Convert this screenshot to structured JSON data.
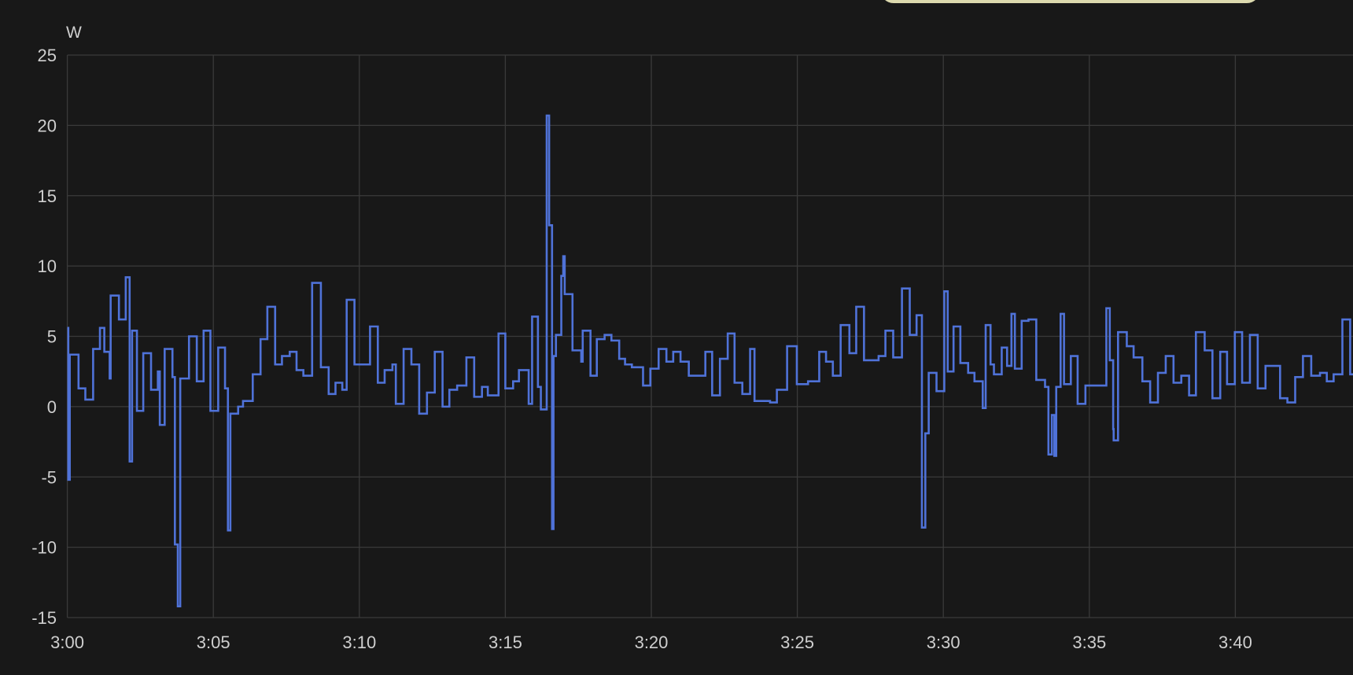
{
  "chart_data": {
    "type": "line",
    "step": true,
    "unit_label": "W",
    "xlabel": "",
    "ylabel": "",
    "ylim": [
      -15,
      25
    ],
    "yticks": [
      25,
      20,
      15,
      10,
      5,
      0,
      -5,
      -10,
      -15
    ],
    "xlim": [
      "3:00:00",
      "3:44:00"
    ],
    "xticks": [
      "3:00",
      "3:05",
      "3:10",
      "3:15",
      "3:20",
      "3:25",
      "3:30",
      "3:35",
      "3:40"
    ],
    "grid": true,
    "colors": {
      "line": "#4f72d8",
      "background": "#181818",
      "grid": "#3a3a3a",
      "text": "#cfcfcf"
    },
    "series": [
      {
        "points": [
          [
            "3:00:00",
            5.6
          ],
          [
            "3:00:02",
            -5.2
          ],
          [
            "3:00:05",
            3.7
          ],
          [
            "3:00:23",
            1.3
          ],
          [
            "3:00:37",
            0.5
          ],
          [
            "3:00:53",
            4.1
          ],
          [
            "3:01:07",
            5.6
          ],
          [
            "3:01:16",
            3.9
          ],
          [
            "3:01:27",
            2.0
          ],
          [
            "3:01:29",
            7.9
          ],
          [
            "3:01:46",
            6.2
          ],
          [
            "3:02:00",
            9.2
          ],
          [
            "3:02:08",
            -3.9
          ],
          [
            "3:02:13",
            5.4
          ],
          [
            "3:02:23",
            -0.3
          ],
          [
            "3:02:36",
            3.8
          ],
          [
            "3:02:52",
            1.2
          ],
          [
            "3:03:06",
            2.5
          ],
          [
            "3:03:10",
            -1.3
          ],
          [
            "3:03:20",
            4.1
          ],
          [
            "3:03:36",
            2.1
          ],
          [
            "3:03:41",
            -9.8
          ],
          [
            "3:03:47",
            -14.2
          ],
          [
            "3:03:52",
            2.0
          ],
          [
            "3:04:10",
            5.0
          ],
          [
            "3:04:26",
            1.8
          ],
          [
            "3:04:40",
            5.4
          ],
          [
            "3:04:54",
            -0.3
          ],
          [
            "3:05:10",
            4.2
          ],
          [
            "3:05:24",
            1.3
          ],
          [
            "3:05:30",
            -8.8
          ],
          [
            "3:05:35",
            -0.5
          ],
          [
            "3:05:51",
            0.0
          ],
          [
            "3:06:01",
            0.4
          ],
          [
            "3:06:21",
            2.3
          ],
          [
            "3:06:37",
            4.8
          ],
          [
            "3:06:51",
            7.1
          ],
          [
            "3:07:07",
            3.0
          ],
          [
            "3:07:21",
            3.6
          ],
          [
            "3:07:37",
            3.9
          ],
          [
            "3:07:51",
            2.6
          ],
          [
            "3:08:05",
            2.2
          ],
          [
            "3:08:23",
            8.8
          ],
          [
            "3:08:41",
            2.8
          ],
          [
            "3:08:57",
            0.9
          ],
          [
            "3:09:11",
            1.7
          ],
          [
            "3:09:25",
            1.2
          ],
          [
            "3:09:34",
            7.6
          ],
          [
            "3:09:50",
            3.0
          ],
          [
            "3:10:22",
            5.7
          ],
          [
            "3:10:38",
            1.7
          ],
          [
            "3:10:52",
            2.6
          ],
          [
            "3:11:08",
            3.0
          ],
          [
            "3:11:15",
            0.2
          ],
          [
            "3:11:31",
            4.1
          ],
          [
            "3:11:47",
            3.0
          ],
          [
            "3:12:03",
            -0.5
          ],
          [
            "3:12:19",
            1.0
          ],
          [
            "3:12:35",
            3.9
          ],
          [
            "3:12:51",
            0.0
          ],
          [
            "3:13:05",
            1.2
          ],
          [
            "3:13:21",
            1.5
          ],
          [
            "3:13:40",
            3.5
          ],
          [
            "3:13:56",
            0.7
          ],
          [
            "3:14:12",
            1.4
          ],
          [
            "3:14:24",
            0.8
          ],
          [
            "3:14:46",
            5.2
          ],
          [
            "3:15:00",
            1.3
          ],
          [
            "3:15:16",
            1.8
          ],
          [
            "3:15:28",
            2.6
          ],
          [
            "3:15:48",
            0.2
          ],
          [
            "3:15:55",
            6.4
          ],
          [
            "3:16:07",
            1.4
          ],
          [
            "3:16:13",
            -0.2
          ],
          [
            "3:16:25",
            20.7
          ],
          [
            "3:16:30",
            12.9
          ],
          [
            "3:16:36",
            -8.7
          ],
          [
            "3:16:39",
            3.6
          ],
          [
            "3:16:44",
            5.1
          ],
          [
            "3:16:55",
            9.3
          ],
          [
            "3:16:59",
            10.7
          ],
          [
            "3:17:02",
            8.0
          ],
          [
            "3:17:18",
            4.0
          ],
          [
            "3:17:36",
            3.2
          ],
          [
            "3:17:39",
            5.4
          ],
          [
            "3:17:55",
            2.2
          ],
          [
            "3:18:08",
            4.8
          ],
          [
            "3:18:24",
            5.1
          ],
          [
            "3:18:38",
            4.7
          ],
          [
            "3:18:54",
            3.4
          ],
          [
            "3:19:06",
            3.0
          ],
          [
            "3:19:20",
            2.8
          ],
          [
            "3:19:43",
            1.5
          ],
          [
            "3:19:58",
            2.7
          ],
          [
            "3:20:15",
            4.1
          ],
          [
            "3:20:31",
            3.2
          ],
          [
            "3:20:45",
            3.9
          ],
          [
            "3:21:00",
            3.2
          ],
          [
            "3:21:17",
            2.2
          ],
          [
            "3:21:51",
            3.9
          ],
          [
            "3:22:05",
            0.8
          ],
          [
            "3:22:21",
            3.4
          ],
          [
            "3:22:37",
            5.2
          ],
          [
            "3:22:51",
            1.7
          ],
          [
            "3:23:07",
            0.9
          ],
          [
            "3:23:23",
            4.1
          ],
          [
            "3:23:32",
            0.4
          ],
          [
            "3:24:04",
            0.3
          ],
          [
            "3:24:18",
            1.2
          ],
          [
            "3:24:39",
            4.3
          ],
          [
            "3:24:59",
            1.6
          ],
          [
            "3:25:22",
            1.8
          ],
          [
            "3:25:45",
            3.9
          ],
          [
            "3:25:59",
            3.2
          ],
          [
            "3:26:13",
            2.2
          ],
          [
            "3:26:29",
            5.8
          ],
          [
            "3:26:47",
            3.8
          ],
          [
            "3:27:01",
            7.1
          ],
          [
            "3:27:17",
            3.3
          ],
          [
            "3:27:47",
            3.6
          ],
          [
            "3:28:01",
            5.4
          ],
          [
            "3:28:17",
            3.5
          ],
          [
            "3:28:35",
            8.4
          ],
          [
            "3:28:51",
            5.1
          ],
          [
            "3:29:05",
            6.5
          ],
          [
            "3:29:16",
            -8.6
          ],
          [
            "3:29:23",
            -1.9
          ],
          [
            "3:29:30",
            2.4
          ],
          [
            "3:29:46",
            1.1
          ],
          [
            "3:30:02",
            8.2
          ],
          [
            "3:30:09",
            2.5
          ],
          [
            "3:30:21",
            5.7
          ],
          [
            "3:30:35",
            3.1
          ],
          [
            "3:30:51",
            2.4
          ],
          [
            "3:31:04",
            1.8
          ],
          [
            "3:31:21",
            -0.1
          ],
          [
            "3:31:27",
            5.8
          ],
          [
            "3:31:37",
            3.0
          ],
          [
            "3:31:44",
            2.3
          ],
          [
            "3:32:00",
            4.2
          ],
          [
            "3:32:11",
            2.9
          ],
          [
            "3:32:20",
            6.6
          ],
          [
            "3:32:27",
            2.7
          ],
          [
            "3:32:41",
            6.1
          ],
          [
            "3:32:55",
            6.2
          ],
          [
            "3:33:11",
            1.9
          ],
          [
            "3:33:29",
            1.4
          ],
          [
            "3:33:36",
            -3.4
          ],
          [
            "3:33:43",
            -0.6
          ],
          [
            "3:33:48",
            -3.5
          ],
          [
            "3:33:52",
            1.4
          ],
          [
            "3:34:01",
            6.6
          ],
          [
            "3:34:08",
            1.6
          ],
          [
            "3:34:22",
            3.6
          ],
          [
            "3:34:36",
            0.2
          ],
          [
            "3:34:52",
            1.5
          ],
          [
            "3:35:35",
            7.0
          ],
          [
            "3:35:42",
            3.3
          ],
          [
            "3:35:49",
            -1.6
          ],
          [
            "3:35:50",
            -2.4
          ],
          [
            "3:35:59",
            5.3
          ],
          [
            "3:36:17",
            4.3
          ],
          [
            "3:36:31",
            3.5
          ],
          [
            "3:36:49",
            1.8
          ],
          [
            "3:37:05",
            0.3
          ],
          [
            "3:37:21",
            2.4
          ],
          [
            "3:37:37",
            3.6
          ],
          [
            "3:37:53",
            1.7
          ],
          [
            "3:38:09",
            2.2
          ],
          [
            "3:38:25",
            0.8
          ],
          [
            "3:38:39",
            5.3
          ],
          [
            "3:38:57",
            4.0
          ],
          [
            "3:39:13",
            0.6
          ],
          [
            "3:39:29",
            3.9
          ],
          [
            "3:39:43",
            1.6
          ],
          [
            "3:39:59",
            5.3
          ],
          [
            "3:40:14",
            1.7
          ],
          [
            "3:40:30",
            5.1
          ],
          [
            "3:40:46",
            1.3
          ],
          [
            "3:41:02",
            2.9
          ],
          [
            "3:41:32",
            0.6
          ],
          [
            "3:41:47",
            0.3
          ],
          [
            "3:42:03",
            2.1
          ],
          [
            "3:42:19",
            3.6
          ],
          [
            "3:42:36",
            2.2
          ],
          [
            "3:42:54",
            2.4
          ],
          [
            "3:43:08",
            1.8
          ],
          [
            "3:43:22",
            2.3
          ],
          [
            "3:43:40",
            6.2
          ],
          [
            "3:43:56",
            2.3
          ]
        ]
      }
    ]
  }
}
